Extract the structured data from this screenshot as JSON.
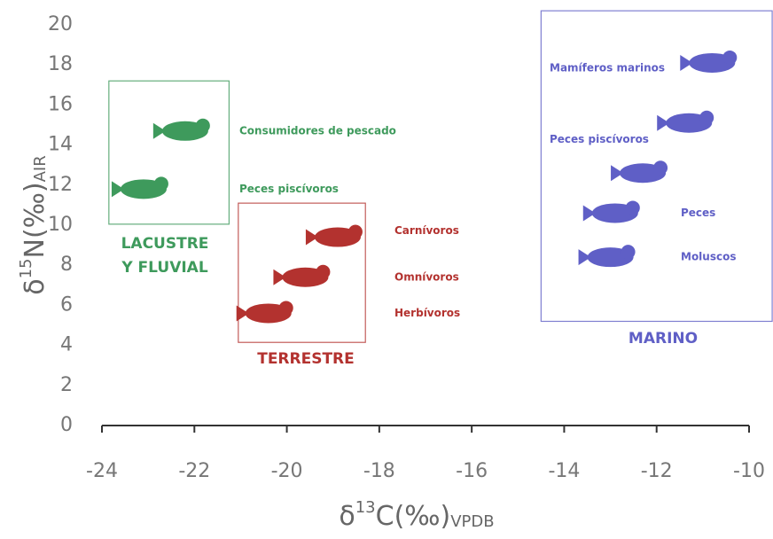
{
  "chart_data": {
    "type": "scatter",
    "x_label": {
      "symbol": "δ",
      "sup": "13",
      "main": "C(‰)",
      "sub": "VPDB"
    },
    "y_label": {
      "symbol": "δ",
      "sup": "15",
      "main": "N(‰)",
      "sub": "AIR"
    },
    "xlim": [
      -24,
      -10
    ],
    "xticks": [
      -24,
      -22,
      -20,
      -18,
      -16,
      -14,
      -12,
      -10
    ],
    "ylim": [
      0,
      20
    ],
    "yticks": [
      0,
      2,
      4,
      6,
      8,
      10,
      12,
      14,
      16,
      18,
      20
    ],
    "groups": [
      {
        "name": [
          "LACUSTRE",
          "Y FLUVIAL"
        ],
        "color": "#3e9a5c",
        "xrange": [
          -23.85,
          -21.25
        ],
        "yrange": [
          10.05,
          17.2
        ],
        "items": [
          {
            "label": "Consumidores de pescado",
            "x": -22.2,
            "y": 14.7
          },
          {
            "label": "Peces piscívoros",
            "x": -23.1,
            "y": 11.8
          }
        ]
      },
      {
        "name": [
          "TERRESTRE"
        ],
        "color": "#b3322f",
        "xrange": [
          -21.05,
          -18.3
        ],
        "yrange": [
          4.15,
          11.1
        ],
        "items": [
          {
            "label": "Carnívoros",
            "x": -18.9,
            "y": 9.4
          },
          {
            "label": "Omnívoros",
            "x": -19.6,
            "y": 7.4
          },
          {
            "label": "Herbívoros",
            "x": -20.4,
            "y": 5.6
          }
        ]
      },
      {
        "name": [
          "MARINO"
        ],
        "color": "#5f5fc6",
        "xrange": [
          -14.5,
          -9.5
        ],
        "yrange": [
          5.2,
          20.7
        ],
        "items": [
          {
            "label": "Mamíferos marinos",
            "x": -10.8,
            "y": 18.1
          },
          {
            "label": "Peces piscívoros",
            "x": -11.3,
            "y": 15.1
          },
          {
            "label": null,
            "x": -12.3,
            "y": 12.6
          },
          {
            "label": "Peces",
            "x": -12.9,
            "y": 10.6
          },
          {
            "label": "Moluscos",
            "x": -13,
            "y": 8.4
          }
        ]
      }
    ]
  }
}
